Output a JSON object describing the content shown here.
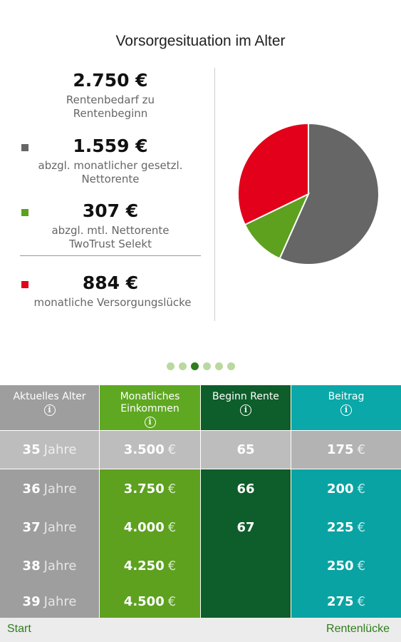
{
  "chart_data": {
    "type": "pie",
    "title": "Vorsorgesituation im Alter",
    "total_label": "2.750 €",
    "total_caption": "Rentenbedarf zu Rentenbeginn",
    "categories": [
      "abzgl. monatlicher gesetzl. Nettorente",
      "abzgl. mtl. Nettorente TwoTrust Selekt",
      "monatliche Versorgungslücke"
    ],
    "values": [
      1559,
      307,
      884
    ],
    "value_labels": [
      "1.559 €",
      "307 €",
      "884 €"
    ],
    "colors": [
      "#666666",
      "#5da11f",
      "#e2001a"
    ]
  },
  "table": {
    "headers": [
      "Aktuelles Alter",
      "Monatliches Einkommen",
      "Beginn Rente",
      "Beitrag"
    ],
    "rows": [
      [
        "35 Jahre",
        "3.500 €",
        "65",
        "175 €"
      ],
      [
        "36 Jahre",
        "3.750 €",
        "66",
        "200 €"
      ],
      [
        "37 Jahre",
        "4.000 €",
        "67",
        "225 €"
      ],
      [
        "38 Jahre",
        "4.250 €",
        null,
        "250 €"
      ],
      [
        "39 Jahre",
        "4.500 €",
        null,
        "275 €"
      ]
    ]
  },
  "footer": {
    "left": "Start",
    "right": "Rentenlücke"
  }
}
